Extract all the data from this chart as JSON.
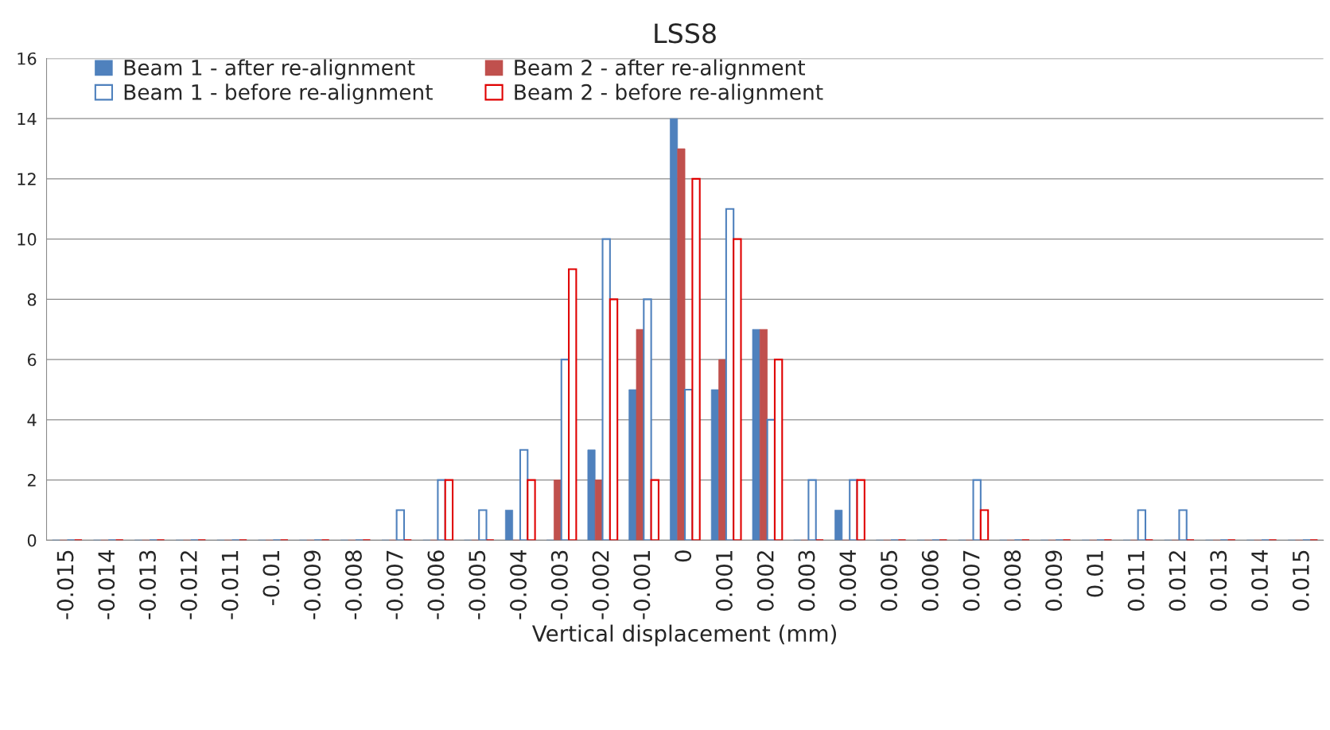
{
  "chart_data": {
    "type": "bar",
    "title": "LSS8",
    "xlabel": "Vertical displacement (mm)",
    "categories": [
      "-0.015",
      "-0.014",
      "-0.013",
      "-0.012",
      "-0.011",
      "-0.01",
      "-0.009",
      "-0.008",
      "-0.007",
      "-0.006",
      "-0.005",
      "-0.004",
      "-0.003",
      "-0.002",
      "-0.001",
      "0",
      "0.001",
      "0.002",
      "0.003",
      "0.004",
      "0.005",
      "0.006",
      "0.007",
      "0.008",
      "0.009",
      "0.01",
      "0.011",
      "0.012",
      "0.013",
      "0.014",
      "0.015"
    ],
    "series": [
      {
        "name": "Beam 1 - after re-alignment",
        "color": "#4f81bd",
        "values": [
          0,
          0,
          0,
          0,
          0,
          0,
          0,
          0,
          0,
          0,
          0,
          1,
          0,
          3,
          5,
          14,
          5,
          7,
          0,
          1,
          0,
          0,
          0,
          0,
          0,
          0,
          0,
          0,
          0,
          0,
          0
        ]
      },
      {
        "name": "Beam 2 - after re-alignment",
        "color": "#c0504d",
        "values": [
          0,
          0,
          0,
          0,
          0,
          0,
          0,
          0,
          0,
          0,
          0,
          0,
          2,
          2,
          7,
          13,
          6,
          7,
          0,
          0,
          0,
          0,
          0,
          0,
          0,
          0,
          0,
          0,
          0,
          0,
          0
        ]
      },
      {
        "name": "Beam 1 - before re-alignment",
        "color": "#4f81bd",
        "values": [
          0,
          0,
          0,
          0,
          0,
          0,
          0,
          0,
          1,
          2,
          1,
          3,
          6,
          10,
          8,
          5,
          11,
          4,
          2,
          2,
          0,
          0,
          2,
          0,
          0,
          0,
          1,
          1,
          0,
          0,
          0
        ]
      },
      {
        "name": "Beam 2 - before re-alignment",
        "color": "#e00000",
        "values": [
          0,
          0,
          0,
          0,
          0,
          0,
          0,
          0,
          0,
          2,
          0,
          2,
          9,
          8,
          2,
          12,
          10,
          6,
          0,
          2,
          0,
          0,
          1,
          0,
          0,
          0,
          0,
          0,
          0,
          0,
          0
        ]
      }
    ],
    "ylim": [
      0,
      16
    ],
    "yticks": [
      0,
      2,
      4,
      6,
      8,
      10,
      12,
      14,
      16
    ],
    "grid": "y",
    "legend": "top left"
  }
}
